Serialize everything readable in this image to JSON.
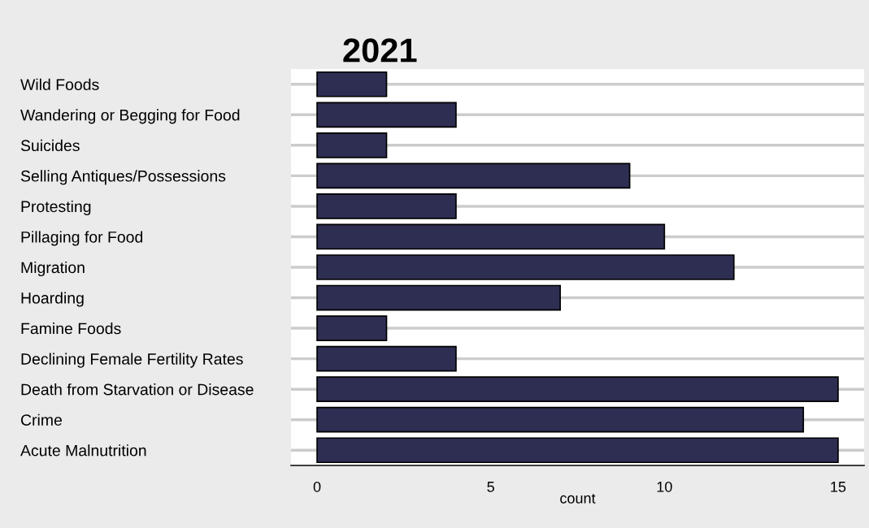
{
  "chart_data": {
    "type": "bar",
    "title": "2021",
    "xlabel": "count",
    "orientation": "horizontal",
    "categories": [
      "Wild Foods",
      "Wandering or Begging for Food",
      "Suicides",
      "Selling Antiques/Possessions",
      "Protesting",
      "Pillaging for Food",
      "Migration",
      "Hoarding",
      "Famine Foods",
      "Declining Female Fertility Rates",
      "Death from Starvation or Disease",
      "Crime",
      "Acute Malnutrition"
    ],
    "values": [
      2,
      4,
      2,
      9,
      4,
      10,
      12,
      7,
      2,
      4,
      15,
      14,
      15
    ],
    "color": "#2e2d52",
    "xlim": [
      -0.75,
      15.75
    ],
    "xticks": [
      0,
      5,
      10,
      15
    ],
    "grid": "y",
    "legend": false
  }
}
